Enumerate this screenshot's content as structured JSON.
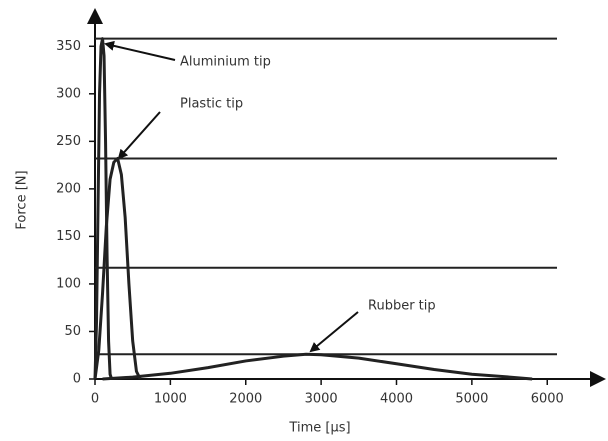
{
  "chart_data": {
    "type": "line",
    "x_label": "Time [µs]",
    "y_label": "Force [N]",
    "xlim": [
      0,
      6700
    ],
    "ylim": [
      0,
      385
    ],
    "xticks": [
      0,
      1000,
      2000,
      3000,
      4000,
      5000,
      6000
    ],
    "yticks": [
      0,
      50,
      100,
      150,
      200,
      250,
      300,
      350
    ],
    "hlines": [
      358,
      232,
      117,
      26
    ],
    "series": [
      {
        "name": "Aluminium tip",
        "color": "#222222",
        "x": [
          0,
          20,
          40,
          60,
          80,
          100,
          120,
          140,
          160,
          180,
          200,
          220
        ],
        "values": [
          0,
          60,
          180,
          300,
          350,
          358,
          340,
          250,
          130,
          40,
          5,
          0
        ]
      },
      {
        "name": "Plastic tip",
        "color": "#222222",
        "x": [
          0,
          50,
          100,
          150,
          200,
          250,
          300,
          350,
          400,
          450,
          500,
          550,
          600
        ],
        "values": [
          0,
          30,
          90,
          160,
          210,
          228,
          232,
          215,
          170,
          100,
          40,
          8,
          0
        ]
      },
      {
        "name": "Rubber tip",
        "color": "#222222",
        "x": [
          100,
          500,
          1000,
          1500,
          2000,
          2500,
          2800,
          3000,
          3500,
          4000,
          4500,
          5000,
          5500,
          5800
        ],
        "values": [
          0,
          2,
          6,
          12,
          19,
          24,
          26,
          25.5,
          22,
          16,
          10,
          5,
          2,
          0
        ]
      }
    ]
  }
}
